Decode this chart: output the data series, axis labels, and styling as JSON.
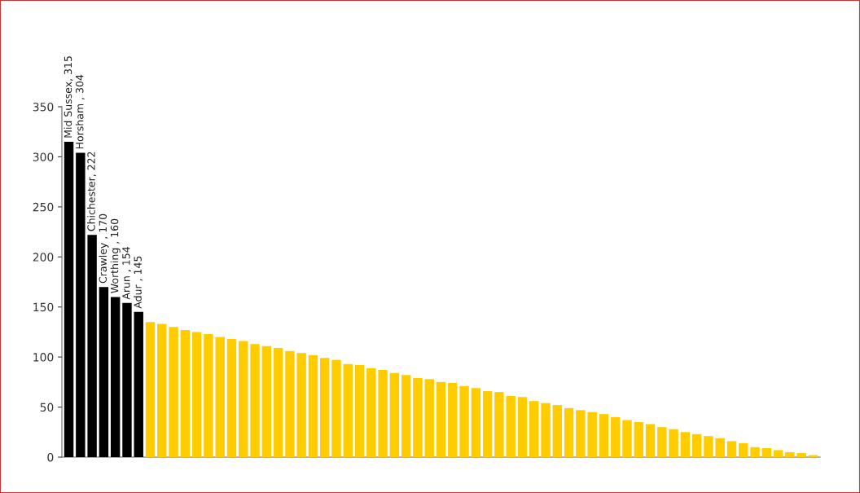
{
  "chart_data": {
    "type": "bar",
    "tick_labels": "y",
    "ylim": [
      0,
      350
    ],
    "yticks": [
      0,
      50,
      100,
      150,
      200,
      250,
      300,
      350
    ],
    "categories": [
      null,
      null,
      null,
      null,
      null,
      null,
      null,
      null,
      null,
      null,
      null,
      null,
      null,
      null,
      null,
      null,
      null,
      null,
      null,
      null,
      null,
      null,
      null,
      null,
      null,
      null,
      null,
      null,
      null,
      null,
      null,
      null,
      null,
      null,
      null,
      null,
      null,
      null,
      null,
      null,
      null,
      null,
      null,
      null,
      null,
      null,
      null,
      null,
      null,
      null,
      null,
      null,
      null,
      null,
      null,
      null,
      null,
      null,
      null,
      null,
      null,
      null,
      null,
      null,
      null
    ],
    "values": [
      315,
      304,
      222,
      170,
      160,
      154,
      145,
      135,
      133,
      130,
      127,
      125,
      123,
      120,
      118,
      116,
      113,
      111,
      109,
      106,
      104,
      102,
      99,
      97,
      93,
      92,
      89,
      87,
      84,
      82,
      79,
      78,
      75,
      74,
      71,
      69,
      66,
      65,
      61,
      60,
      56,
      54,
      52,
      49,
      47,
      45,
      43,
      40,
      37,
      35,
      33,
      30,
      28,
      25,
      23,
      21,
      19,
      16,
      14,
      10,
      9,
      7,
      5,
      4,
      2
    ],
    "colors": [
      "#000000",
      "#000000",
      "#000000",
      "#000000",
      "#000000",
      "#000000",
      "#000000",
      "#ffcc00",
      "#ffcc00",
      "#ffcc00",
      "#ffcc00",
      "#ffcc00",
      "#ffcc00",
      "#ffcc00",
      "#ffcc00",
      "#ffcc00",
      "#ffcc00",
      "#ffcc00",
      "#ffcc00",
      "#ffcc00",
      "#ffcc00",
      "#ffcc00",
      "#ffcc00",
      "#ffcc00",
      "#ffcc00",
      "#ffcc00",
      "#ffcc00",
      "#ffcc00",
      "#ffcc00",
      "#ffcc00",
      "#ffcc00",
      "#ffcc00",
      "#ffcc00",
      "#ffcc00",
      "#ffcc00",
      "#ffcc00",
      "#ffcc00",
      "#ffcc00",
      "#ffcc00",
      "#ffcc00",
      "#ffcc00",
      "#ffcc00",
      "#ffcc00",
      "#ffcc00",
      "#ffcc00",
      "#ffcc00",
      "#ffcc00",
      "#ffcc00",
      "#ffcc00",
      "#ffcc00",
      "#ffcc00",
      "#ffcc00",
      "#ffcc00",
      "#ffcc00",
      "#ffcc00",
      "#ffcc00",
      "#ffcc00",
      "#ffcc00",
      "#ffcc00",
      "#ffcc00",
      "#ffcc00",
      "#ffcc00",
      "#ffcc00",
      "#ffcc00",
      "#ffcc00"
    ],
    "value_labels": [
      "Mid Sussex, 315",
      "Horsham , 304",
      "Chichester, 222",
      "Crawley , 170",
      "Worthing , 160",
      "Arun , 154",
      "Adur , 145",
      null,
      null,
      null,
      null,
      null,
      null,
      null,
      null,
      null,
      null,
      null,
      null,
      null,
      null,
      null,
      null,
      null,
      null,
      null,
      null,
      null,
      null,
      null,
      null,
      null,
      null,
      null,
      null,
      null,
      null,
      null,
      null,
      null,
      null,
      null,
      null,
      null,
      null,
      null,
      null,
      null,
      null,
      null,
      null,
      null,
      null,
      null,
      null,
      null,
      null,
      null,
      null,
      null,
      null,
      null,
      null,
      null,
      null
    ]
  }
}
